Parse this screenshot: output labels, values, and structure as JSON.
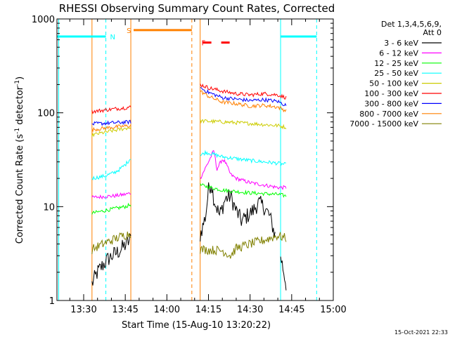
{
  "chart_data": {
    "type": "line",
    "title": "RHESSI Observing Summary Count Rates, Corrected",
    "xlabel": "Start Time (15-Aug-10 13:20:22)",
    "ylabel_pre": "Corrected Count Rate (s",
    "ylabel_sup1": "-1",
    "ylabel_mid": " detector",
    "ylabel_sup2": "-1",
    "ylabel_post": ")",
    "y_scale": "log",
    "ylim": [
      1,
      1000
    ],
    "xlim": [
      "13:20:22",
      "15:00:00"
    ],
    "x_ticks": [
      "13:30",
      "13:45",
      "14:00",
      "14:15",
      "14:30",
      "14:45",
      "15:00"
    ],
    "y_ticks": [
      "1",
      "10",
      "100",
      "1000"
    ],
    "legend_title": [
      "Det 1,3,4,5,6,9,",
      "Att 0"
    ],
    "legend_position": "right",
    "series": [
      {
        "name": "3 - 6 keV",
        "color": "#000000",
        "segments": [
          {
            "t": [
              "13:33",
              "13:35",
              "13:37",
              "13:39",
              "13:41",
              "13:43",
              "13:45",
              "13:47"
            ],
            "v": [
              1.5,
              2.0,
              2.4,
              2.8,
              3.1,
              3.4,
              3.9,
              4.5
            ]
          },
          {
            "t": [
              "14:12",
              "14:14",
              "14:15",
              "14:16",
              "14:17",
              "14:19",
              "14:21",
              "14:23",
              "14:25",
              "14:27",
              "14:29",
              "14:31",
              "14:33",
              "14:35",
              "14:37",
              "14:39"
            ],
            "v": [
              5,
              8,
              15,
              18,
              12,
              8,
              12,
              13,
              9,
              7,
              8,
              9,
              11,
              10,
              8,
              5
            ]
          },
          {
            "t": [
              "14:41",
              "14:43"
            ],
            "v": [
              3,
              1.5
            ]
          }
        ]
      },
      {
        "name": "6 - 12 keV",
        "color": "#ff00ff",
        "segments": [
          {
            "t": [
              "13:33",
              "13:37",
              "13:41",
              "13:45",
              "13:47"
            ],
            "v": [
              12.5,
              12.8,
              13,
              13.5,
              14
            ]
          },
          {
            "t": [
              "14:12",
              "14:15",
              "14:17",
              "14:18",
              "14:20",
              "14:21",
              "14:23",
              "14:25",
              "14:30",
              "14:35",
              "14:40",
              "14:43"
            ],
            "v": [
              20,
              30,
              40,
              25,
              32,
              30,
              22,
              20,
              18,
              17,
              16,
              16
            ]
          }
        ]
      },
      {
        "name": "12 - 25 keV",
        "color": "#00ff00",
        "segments": [
          {
            "t": [
              "13:33",
              "13:37",
              "13:41",
              "13:45",
              "13:47"
            ],
            "v": [
              8.5,
              9,
              9.5,
              10,
              10.5
            ]
          },
          {
            "t": [
              "14:12",
              "14:20",
              "14:30",
              "14:40",
              "14:43"
            ],
            "v": [
              17,
              15,
              14,
              13.5,
              13
            ]
          }
        ]
      },
      {
        "name": "25 - 50 keV",
        "color": "#00ffff",
        "segments": [
          {
            "t": [
              "13:33",
              "13:37",
              "13:41",
              "13:43",
              "13:45",
              "13:47"
            ],
            "v": [
              20,
              21,
              23,
              25,
              28,
              33
            ]
          },
          {
            "t": [
              "14:12",
              "14:14",
              "14:20",
              "14:30",
              "14:40",
              "14:43"
            ],
            "v": [
              35,
              38,
              34,
              31,
              29,
              28
            ]
          }
        ]
      },
      {
        "name": "50 - 100 keV",
        "color": "#cccc00",
        "segments": [
          {
            "t": [
              "13:33",
              "13:40",
              "13:47"
            ],
            "v": [
              58,
              64,
              70
            ]
          },
          {
            "t": [
              "14:12",
              "14:20",
              "14:30",
              "14:40",
              "14:43"
            ],
            "v": [
              82,
              80,
              77,
              73,
              70
            ]
          }
        ]
      },
      {
        "name": "100 - 300 keV",
        "color": "#ff0000",
        "segments": [
          {
            "t": [
              "13:33",
              "13:40",
              "13:47"
            ],
            "v": [
              103,
              109,
              115
            ]
          },
          {
            "t": [
              "14:12",
              "14:15",
              "14:20",
              "14:25",
              "14:30",
              "14:35",
              "14:40",
              "14:43"
            ],
            "v": [
              200,
              185,
              170,
              160,
              155,
              160,
              155,
              145
            ]
          }
        ]
      },
      {
        "name": "300 - 800 keV",
        "color": "#0000ff",
        "segments": [
          {
            "t": [
              "13:33",
              "13:40",
              "13:47"
            ],
            "v": [
              76,
              78,
              80
            ]
          },
          {
            "t": [
              "14:12",
              "14:15",
              "14:20",
              "14:25",
              "14:30",
              "14:35",
              "14:40",
              "14:43"
            ],
            "v": [
              185,
              165,
              145,
              140,
              135,
              138,
              132,
              120
            ]
          }
        ]
      },
      {
        "name": "800 - 7000 keV",
        "color": "#ff8000",
        "segments": [
          {
            "t": [
              "13:33",
              "13:40",
              "13:47"
            ],
            "v": [
              66,
              70,
              73
            ]
          },
          {
            "t": [
              "14:12",
              "14:15",
              "14:20",
              "14:25",
              "14:30",
              "14:35",
              "14:40",
              "14:43"
            ],
            "v": [
              170,
              150,
              130,
              125,
              118,
              120,
              115,
              105
            ]
          }
        ]
      },
      {
        "name": "7000 - 15000 keV",
        "color": "#808000",
        "segments": [
          {
            "t": [
              "13:33",
              "13:37",
              "13:41",
              "13:45",
              "13:47"
            ],
            "v": [
              3.5,
              4.0,
              4.5,
              5.0,
              5.2
            ]
          },
          {
            "t": [
              "14:12",
              "14:20",
              "14:23",
              "14:25",
              "14:30",
              "14:35",
              "14:40",
              "14:43"
            ],
            "v": [
              3.5,
              3.4,
              3.0,
              3.6,
              4.0,
              4.4,
              4.9,
              4.6
            ]
          }
        ]
      }
    ],
    "vertical_markers": [
      {
        "t": "13:21",
        "color": "#00ffff",
        "dashed": false
      },
      {
        "t": "13:33",
        "color": "#ff8000",
        "dashed": false
      },
      {
        "t": "13:38",
        "color": "#00ffff",
        "dashed": true
      },
      {
        "t": "13:47",
        "color": "#ff8000",
        "dashed": false
      },
      {
        "t": "14:09",
        "color": "#ff8000",
        "dashed": true
      },
      {
        "t": "14:12",
        "color": "#ff8000",
        "dashed": false
      },
      {
        "t": "14:41",
        "color": "#00ffff",
        "dashed": false
      },
      {
        "t": "14:54",
        "color": "#00ffff",
        "dashed": true
      }
    ],
    "flag_bars": [
      {
        "label": "N",
        "color": "#00ffff",
        "label_color": "#00ffff",
        "dashed": false,
        "y": 650,
        "segments": [
          [
            "13:20:22",
            "13:38"
          ],
          [
            "14:41",
            "14:54"
          ]
        ],
        "label_t": "13:39"
      },
      {
        "label": "S",
        "color": "#ff8000",
        "label_color": "#ff8000",
        "dashed": false,
        "y": 760,
        "segments": [
          [
            "13:48",
            "14:09"
          ]
        ],
        "label_t": "13:45"
      },
      {
        "label": "F",
        "color": "#ff0000",
        "label_color": "#ff0000",
        "dashed": true,
        "y": 560,
        "segments": [
          [
            "14:13",
            "14:24"
          ]
        ],
        "label_t": "14:12"
      }
    ],
    "footer_timestamp": "15-Oct-2021 22:33"
  }
}
